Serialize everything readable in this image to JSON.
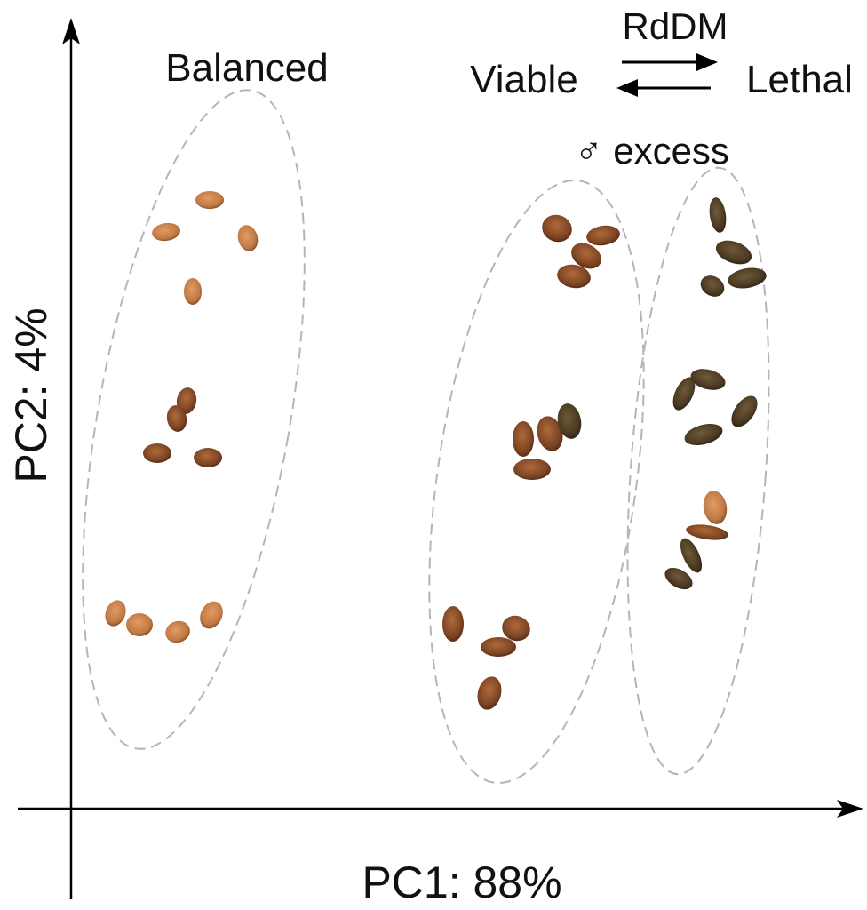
{
  "axes": {
    "x_label": "PC1: 88%",
    "y_label": "PC2: 4%"
  },
  "groups": [
    {
      "label": "Balanced"
    },
    {
      "label": "♂ excess"
    }
  ],
  "reaction": {
    "left": "Viable",
    "right": "Lethal",
    "catalyst": "RdDM"
  },
  "colors": {
    "ellipse_stroke": "#b5b5b5",
    "seed_light": "#c97a45",
    "seed_mid": "#8a4a26",
    "seed_dark": "#4a3320"
  }
}
